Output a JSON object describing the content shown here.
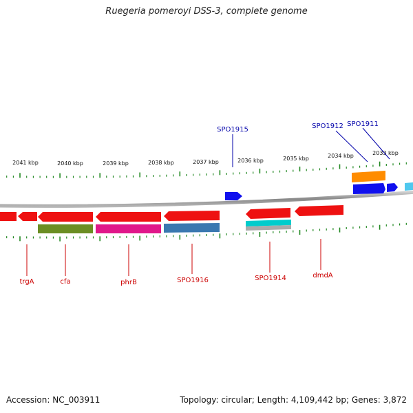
{
  "title": "Ruegeria pomeroyi DSS-3, complete genome",
  "footer": {
    "accession": "Accession: NC_003911",
    "topology": "Topology: circular; Length: 4,109,442 bp; Genes: 3,872"
  },
  "scale_labels": [
    "2041 kbp",
    "2040 kbp",
    "2039 kbp",
    "2038 kbp",
    "2037 kbp",
    "2036 kbp",
    "2035 kbp",
    "2034 kbp",
    "2033 kbp"
  ],
  "upper_gene_labels": [
    "SPO1915",
    "SPO1912",
    "SPO1911"
  ],
  "lower_gene_labels": [
    "trgA",
    "cfa",
    "phrB",
    "SPO1916",
    "SPO1914",
    "dmdA"
  ],
  "colors": {
    "forward_gene": "#1010ee",
    "reverse_gene": "#ee1111",
    "upper_label": "#0000aa",
    "lower_label": "#cc0000",
    "tick": "#228822",
    "backbone": "#888888"
  },
  "feature_colors": [
    "#ff8c00",
    "#00cccc",
    "#6b8e23",
    "#e0188a",
    "#3a78b0",
    "#aaaaaa",
    "#4fc8ee"
  ]
}
